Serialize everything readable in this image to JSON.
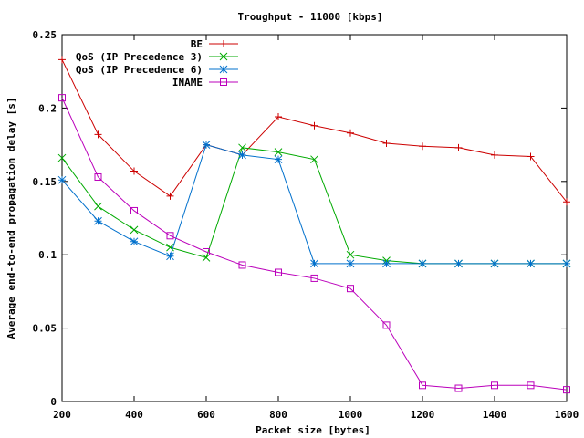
{
  "chart_data": {
    "type": "line",
    "title": "Troughput - 11000 [kbps]",
    "xlabel": "Packet size [bytes]",
    "ylabel": "Average end-to-end propagation delay [s]",
    "xlim": [
      200,
      1600
    ],
    "ylim": [
      0,
      0.25
    ],
    "xticks": [
      200,
      400,
      600,
      800,
      1000,
      1200,
      1400,
      1600
    ],
    "yticks": [
      0,
      0.05,
      0.1,
      0.15,
      0.2,
      0.25
    ],
    "xtick_labels": [
      "200",
      "400",
      "600",
      "800",
      "1000",
      "1200",
      "1400",
      "1600"
    ],
    "ytick_labels": [
      "0",
      "0.05",
      "0.1",
      "0.15",
      "0.2",
      "0.25"
    ],
    "legend_position": "top-left",
    "grid": false,
    "x": [
      200,
      300,
      400,
      500,
      600,
      700,
      800,
      900,
      1000,
      1100,
      1200,
      1300,
      1400,
      1500,
      1600
    ],
    "series": [
      {
        "name": "BE",
        "color": "#cc0000",
        "marker": "plus",
        "values": [
          0.233,
          0.182,
          0.157,
          0.14,
          0.175,
          0.168,
          0.194,
          0.188,
          0.183,
          0.176,
          0.174,
          0.173,
          0.168,
          0.167,
          0.136
        ]
      },
      {
        "name": "QoS (IP Precedence 3)",
        "color": "#00aa00",
        "marker": "cross",
        "values": [
          0.166,
          0.133,
          0.117,
          0.105,
          0.098,
          0.173,
          0.17,
          0.165,
          0.1,
          0.096,
          0.094,
          0.094,
          0.094,
          0.094,
          0.094
        ]
      },
      {
        "name": "QoS (IP Precedence 6)",
        "color": "#0070cc",
        "marker": "star",
        "values": [
          0.151,
          0.123,
          0.109,
          0.099,
          0.175,
          0.168,
          0.165,
          0.094,
          0.094,
          0.094,
          0.094,
          0.094,
          0.094,
          0.094,
          0.094
        ]
      },
      {
        "name": "INAME",
        "color": "#bb00bb",
        "marker": "square",
        "values": [
          0.207,
          0.153,
          0.13,
          0.113,
          0.102,
          0.093,
          0.088,
          0.084,
          0.077,
          0.052,
          0.011,
          0.009,
          0.011,
          0.011,
          0.008
        ]
      }
    ]
  }
}
